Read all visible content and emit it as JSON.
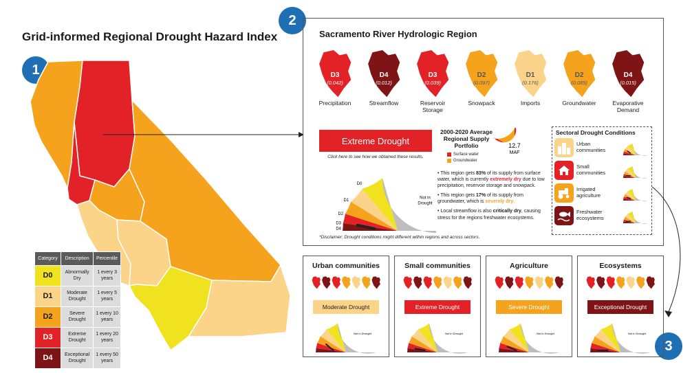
{
  "title": "Grid-informed Regional Drought Hazard Index",
  "steps": [
    "1",
    "2",
    "3"
  ],
  "colors": {
    "D0": "#f0e21e",
    "D1": "#fbd48a",
    "D2": "#f5a31d",
    "D3": "#e32227",
    "D4": "#7e1416",
    "none": "#bdbdbd",
    "badge": "#1f6fb5"
  },
  "legend": {
    "headers": [
      "Category",
      "Description",
      "Percentile"
    ],
    "rows": [
      {
        "category": "D0",
        "description": "Abnormally Dry",
        "percentile": "1 every 3 years"
      },
      {
        "category": "D1",
        "description": "Moderate Drought",
        "percentile": "1 every 5 years"
      },
      {
        "category": "D2",
        "description": "Severe Drought",
        "percentile": "1 every 10 years"
      },
      {
        "category": "D3",
        "description": "Extreme Drought",
        "percentile": "1 every 20 years"
      },
      {
        "category": "D4",
        "description": "Exceptional Drought",
        "percentile": "1 every 50 years"
      }
    ]
  },
  "region": {
    "title": "Sacramento River Hydrologic Region",
    "indicators": [
      {
        "category": "D3",
        "value": "(0.042)",
        "label": "Precipitation"
      },
      {
        "category": "D4",
        "value": "(0.012)",
        "label": "Streamflow"
      },
      {
        "category": "D3",
        "value": "(0.039)",
        "label": "Reservoir Storage"
      },
      {
        "category": "D2",
        "value": "(0.097)",
        "label": "Snowpack"
      },
      {
        "category": "D1",
        "value": "(0.176)",
        "label": "Imports"
      },
      {
        "category": "D2",
        "value": "(0.085)",
        "label": "Groundwater"
      },
      {
        "category": "D4",
        "value": "(0.015)",
        "label": "Evaporative Demand"
      }
    ],
    "status": "Extreme Drought",
    "click_note": "Click here to see how we obtained these results.",
    "gauge_labels": [
      "D0",
      "D1",
      "D2",
      "D3",
      "D4",
      "Not in Drought"
    ],
    "portfolio": {
      "title": "2000-2020 Average Regional Supply Portfolio",
      "total": "12.7",
      "unit": "MAF",
      "legend": [
        {
          "label": "Surface water",
          "color": "#e32227",
          "share": 83
        },
        {
          "label": "Groundwater",
          "color": "#f5a31d",
          "share": 17
        }
      ]
    },
    "bullets": {
      "b1_pre": "This region gets ",
      "b1_pct": "83%",
      "b1_mid": " of its supply from surface water, which is currently ",
      "b1_hl": "extremely dry",
      "b1_post": " due to low precipitation, reservoir storage and snowpack.",
      "b2_pre": "This region gets ",
      "b2_pct": "17%",
      "b2_mid": " of its supply from groundwater, which is ",
      "b2_hl": "severely dry",
      "b2_post": ".",
      "b3_pre": "Local streamflow is also ",
      "b3_hl": "critically dry",
      "b3_post": ", causing stress for the regions freshwater ecosystems."
    },
    "disclaimer": "*Disclaimer: Drought conditions might different within regions and across sectors.",
    "sectoral": {
      "title": "Sectoral Drought Conditions",
      "items": [
        {
          "label": "Urban communities",
          "color": "#fbd48a",
          "icon": "city-icon",
          "level": 1
        },
        {
          "label": "Small communities",
          "color": "#e32227",
          "icon": "farmhouse-icon",
          "level": 3
        },
        {
          "label": "Irrigated agriculture",
          "color": "#f5a31d",
          "icon": "tractor-icon",
          "level": 2
        },
        {
          "label": "Freshwater ecosystems",
          "color": "#7e1416",
          "icon": "fish-icon",
          "level": 4
        }
      ]
    }
  },
  "sector_cards": [
    {
      "title": "Urban communities",
      "status": "Moderate Drought",
      "category": "D1",
      "level": 1
    },
    {
      "title": "Small communities",
      "status": "Extreme Drought",
      "category": "D3",
      "level": 3
    },
    {
      "title": "Agriculture",
      "status": "Severe Drought",
      "category": "D2",
      "level": 2
    },
    {
      "title": "Ecosystems",
      "status": "Exceptional Drought",
      "category": "D4",
      "level": 4
    }
  ]
}
